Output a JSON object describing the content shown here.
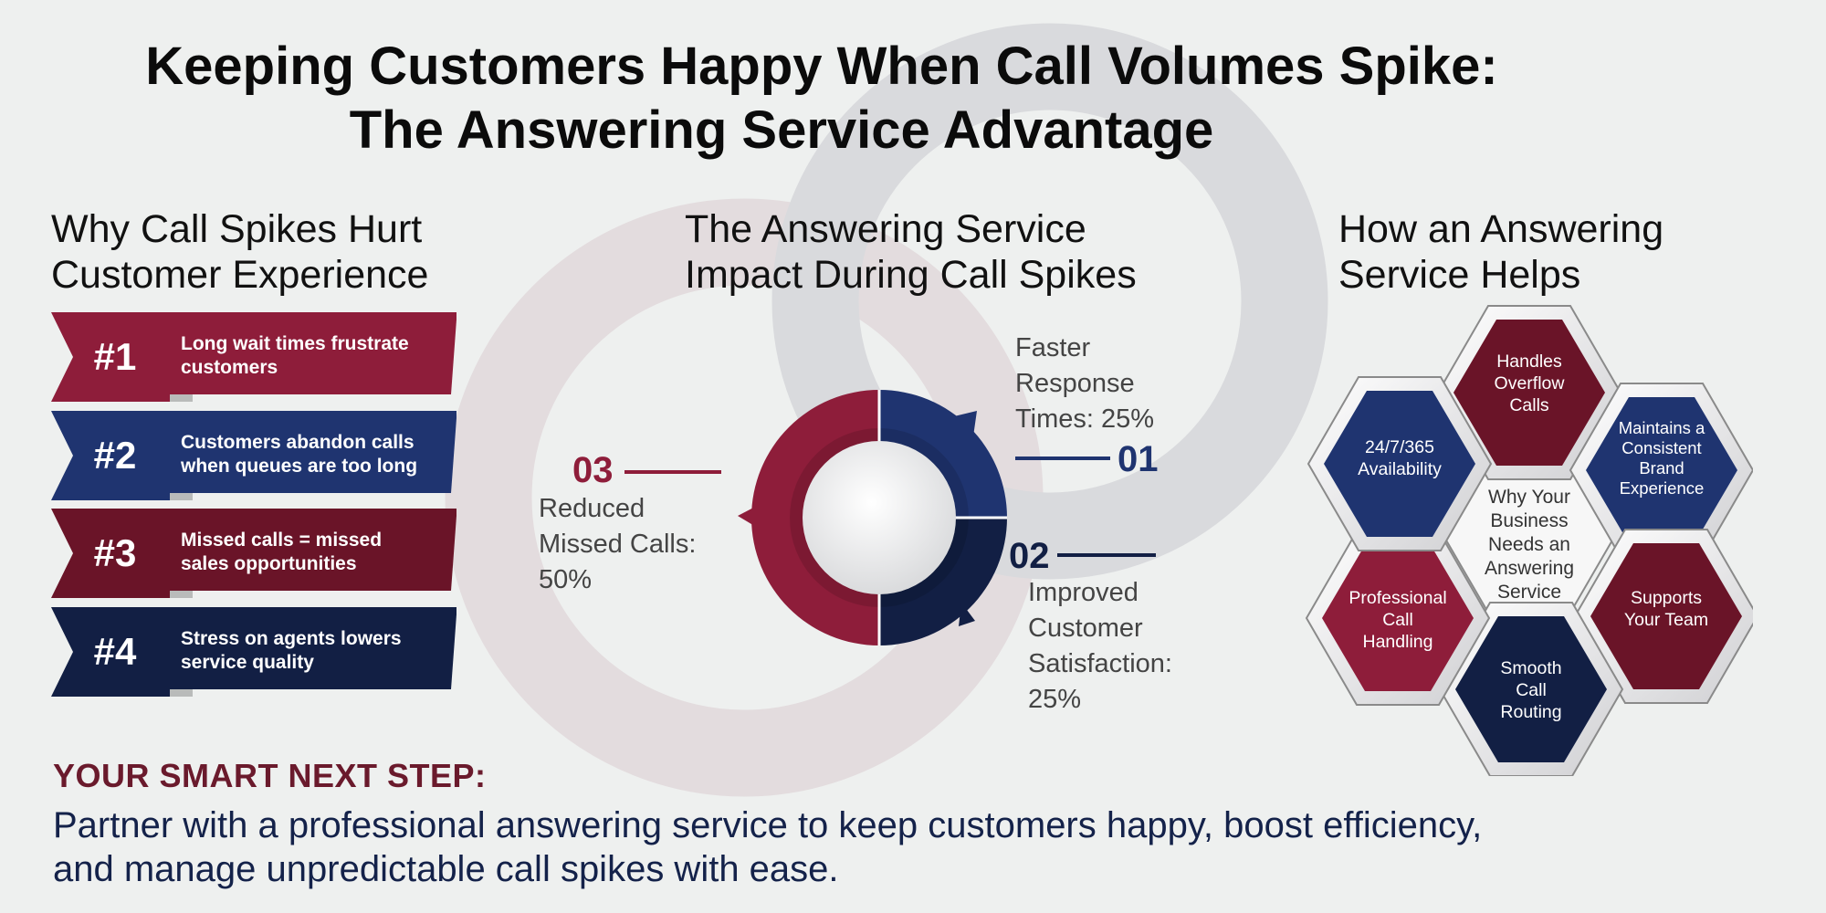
{
  "title": {
    "line1": "Keeping Customers Happy When Call Volumes Spike:",
    "line2": "The Answering Service Advantage"
  },
  "left": {
    "heading_line1": "Why Call Spikes Hurt",
    "heading_line2": "Customer Experience",
    "items": [
      {
        "num": "#1",
        "line1": "Long wait times frustrate",
        "line2": "customers",
        "color": "#8e1d3a"
      },
      {
        "num": "#2",
        "line1": "Customers abandon calls",
        "line2": "when queues are too long",
        "color": "#1f3470"
      },
      {
        "num": "#3",
        "line1": "Missed calls = missed",
        "line2": "sales opportunities",
        "color": "#6a1428"
      },
      {
        "num": "#4",
        "line1": "Stress on agents lowers",
        "line2": "service quality",
        "color": "#121f44"
      }
    ]
  },
  "center": {
    "heading_line1": "The Answering Service",
    "heading_line2": "Impact During Call Spikes",
    "stats": [
      {
        "num": "01",
        "lines": [
          "Faster",
          "Response",
          "Times: 25%"
        ],
        "color": "#1f3470"
      },
      {
        "num": "02",
        "lines": [
          "Improved",
          "Customer",
          "Satisfaction:",
          "25%"
        ],
        "color": "#121f44"
      },
      {
        "num": "03",
        "lines": [
          "Reduced",
          "Missed Calls:",
          "50%"
        ],
        "color": "#8e1d3a"
      }
    ],
    "ring_colors": {
      "blue": "#1f3470",
      "navy": "#121f44",
      "red": "#8e1d3a"
    }
  },
  "right": {
    "heading_line1": "How an Answering",
    "heading_line2": "Service Helps",
    "center_lines": [
      "Why Your",
      "Business",
      "Needs an",
      "Answering",
      "Service"
    ],
    "hexes": [
      {
        "lines": [
          "Handles",
          "Overflow",
          "Calls"
        ],
        "color": "#6a1428"
      },
      {
        "lines": [
          "Maintains a",
          "Consistent",
          "Brand",
          "Experience"
        ],
        "color": "#1f3470"
      },
      {
        "lines": [
          "Supports",
          "Your Team"
        ],
        "color": "#6a1428"
      },
      {
        "lines": [
          "Smooth",
          "Call",
          "Routing"
        ],
        "color": "#121f44"
      },
      {
        "lines": [
          "Professional",
          "Call",
          "Handling"
        ],
        "color": "#8e1d3a"
      },
      {
        "lines": [
          "24/7/365",
          "Availability"
        ],
        "color": "#1f3470"
      }
    ]
  },
  "cta": {
    "heading": "YOUR SMART NEXT STEP:",
    "line1": "Partner with a professional answering service to keep customers happy, boost efficiency,",
    "line2": "and manage unpredictable call spikes with ease."
  }
}
